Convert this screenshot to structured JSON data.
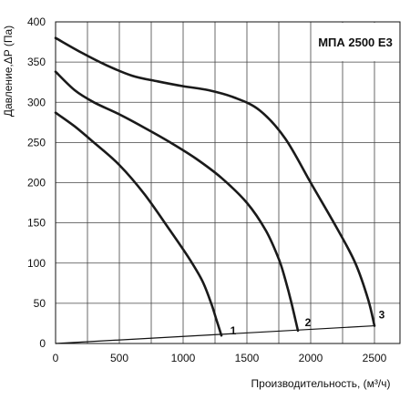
{
  "chart_data": {
    "type": "line",
    "title": "МПА 2500 Е3",
    "xlabel": "Производительность, (м³/ч)",
    "ylabel": "Давление,ΔP (Па)",
    "xlim": [
      0,
      2700
    ],
    "ylim": [
      0,
      400
    ],
    "x_ticks": [
      0,
      500,
      1000,
      1500,
      2000,
      2500
    ],
    "y_ticks": [
      0,
      50,
      100,
      150,
      200,
      250,
      300,
      350,
      400
    ],
    "grid": true,
    "series": [
      {
        "name": "1",
        "x": [
          0,
          150,
          300,
          500,
          700,
          900,
          1050,
          1150,
          1220,
          1260,
          1300
        ],
        "y": [
          287,
          270,
          250,
          222,
          185,
          140,
          105,
          78,
          50,
          30,
          10
        ]
      },
      {
        "name": "2",
        "x": [
          0,
          150,
          300,
          500,
          700,
          900,
          1100,
          1300,
          1500,
          1650,
          1750,
          1800,
          1850,
          1900
        ],
        "y": [
          338,
          315,
          300,
          285,
          268,
          250,
          230,
          206,
          175,
          140,
          105,
          80,
          50,
          16
        ]
      },
      {
        "name": "3",
        "x": [
          0,
          200,
          400,
          600,
          800,
          1000,
          1200,
          1400,
          1600,
          1800,
          2000,
          2200,
          2350,
          2450,
          2500
        ],
        "y": [
          380,
          362,
          346,
          333,
          326,
          320,
          315,
          306,
          290,
          255,
          200,
          145,
          100,
          55,
          22
        ]
      }
    ],
    "system_line": {
      "x": [
        0,
        2500
      ],
      "y": [
        0,
        22
      ]
    }
  }
}
